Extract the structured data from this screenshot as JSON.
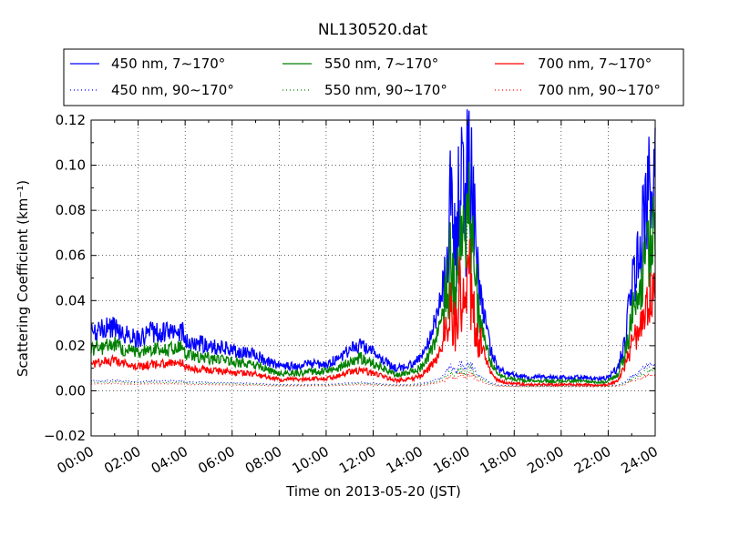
{
  "chart_data": {
    "type": "line",
    "title": "NL130520.dat",
    "xlabel": "Time on 2013-05-20 (JST)",
    "ylabel": "Scattering Coefficient (km⁻¹)",
    "xlim": [
      0,
      24
    ],
    "ylim": [
      -0.02,
      0.12
    ],
    "x_ticks": [
      "00:00",
      "02:00",
      "04:00",
      "06:00",
      "08:00",
      "10:00",
      "12:00",
      "14:00",
      "16:00",
      "18:00",
      "20:00",
      "22:00",
      "24:00"
    ],
    "y_ticks": [
      "−0.02",
      "0.00",
      "0.02",
      "0.04",
      "0.06",
      "0.08",
      "0.10",
      "0.12"
    ],
    "grid": true,
    "legend_position": "top",
    "series": [
      {
        "name": "450 nm, 7∼170°",
        "color": "#0000ff",
        "style": "solid",
        "scale": 1.0
      },
      {
        "name": "550 nm, 7∼170°",
        "color": "#008000",
        "style": "solid",
        "scale": 0.72
      },
      {
        "name": "700 nm, 7∼170°",
        "color": "#ff0000",
        "style": "solid",
        "scale": 0.46
      },
      {
        "name": "450 nm, 90∼170°",
        "color": "#0000ff",
        "style": "dotted",
        "scale": 0.11
      },
      {
        "name": "550 nm, 90∼170°",
        "color": "#008000",
        "style": "dotted",
        "scale": 0.085
      },
      {
        "name": "700 nm, 90∼170°",
        "color": "#ff0000",
        "style": "dotted",
        "scale": 0.06
      }
    ],
    "x": [
      0,
      0.5,
      1,
      1.5,
      2,
      2.5,
      3,
      3.5,
      3.9,
      4.0,
      4.5,
      5,
      5.5,
      6,
      6.5,
      7,
      7.5,
      8,
      8.5,
      9,
      9.5,
      10,
      10.5,
      11,
      11.5,
      12,
      12.5,
      13,
      13.5,
      14,
      14.3,
      14.7,
      15,
      15.3,
      15.5,
      15.7,
      15.9,
      16.1,
      16.3,
      16.5,
      16.8,
      17,
      17.3,
      17.6,
      18,
      18.5,
      19,
      19.5,
      20,
      20.5,
      21,
      21.5,
      22,
      22.4,
      22.7,
      23,
      23.3,
      23.6,
      24
    ],
    "values_450nm_7_170": [
      0.026,
      0.027,
      0.029,
      0.025,
      0.023,
      0.026,
      0.026,
      0.026,
      0.027,
      0.022,
      0.021,
      0.02,
      0.019,
      0.018,
      0.017,
      0.016,
      0.013,
      0.011,
      0.011,
      0.011,
      0.012,
      0.012,
      0.014,
      0.018,
      0.02,
      0.017,
      0.013,
      0.01,
      0.011,
      0.014,
      0.02,
      0.032,
      0.05,
      0.08,
      0.06,
      0.1,
      0.075,
      0.108,
      0.07,
      0.05,
      0.03,
      0.018,
      0.01,
      0.008,
      0.007,
      0.006,
      0.006,
      0.006,
      0.006,
      0.006,
      0.006,
      0.005,
      0.006,
      0.01,
      0.02,
      0.045,
      0.06,
      0.085,
      0.095
    ]
  }
}
